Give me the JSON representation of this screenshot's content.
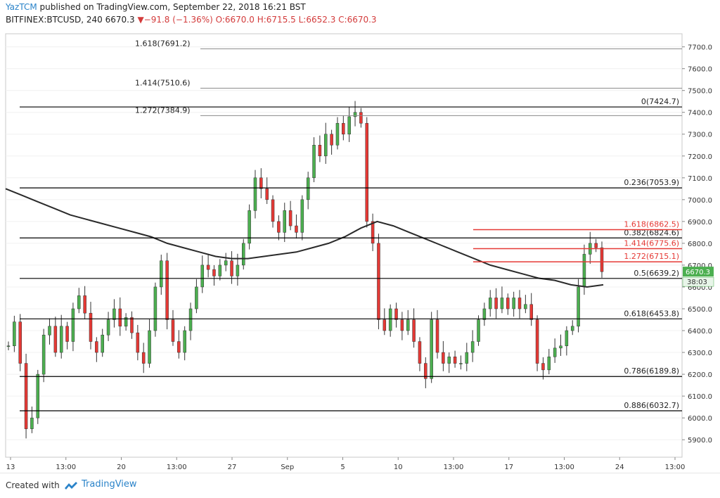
{
  "header": {
    "author": "YazTCM",
    "published": "published on TradingView.com, September 22, 2018 16:21 BST",
    "symbol_line_prefix": "BITFINEX:BTCUSD, 240",
    "last": "6670.3",
    "change": "▼−91.8 (−1.36%)",
    "open": "O:6670.0",
    "high": "H:6715.5",
    "low": "L:6652.3",
    "close": "C:6670.3"
  },
  "footer": {
    "created_label": "Created with",
    "brand_label": "TradingView"
  },
  "colors": {
    "bull": "#4caf50",
    "bear": "#e53935",
    "ma": "#2a2a2a",
    "fib_black": "#000000",
    "fib_red": "#e53935",
    "grid": "#f0f0f0",
    "price_tag": "#4caf50"
  },
  "chart_data": {
    "type": "candlestick",
    "ylim": [
      5820,
      7760
    ],
    "y_ticks": [
      "5900.0",
      "6000.0",
      "6100.0",
      "6200.0",
      "6300.0",
      "6400.0",
      "6500.0",
      "6600.0",
      "6700.0",
      "6800.0",
      "6900.0",
      "7000.0",
      "7100.0",
      "7200.0",
      "7300.0",
      "7400.0",
      "7500.0",
      "7600.0",
      "7700.0"
    ],
    "x_ticks": [
      "13",
      "13:00",
      "20",
      "13:00",
      "27",
      "Sep",
      "5",
      "10",
      "13:00",
      "17",
      "13:00",
      "24",
      "13:00"
    ],
    "last_price_label": "6670.3",
    "countdown_label": "38:03",
    "fib_levels": [
      {
        "label": "1.618(7691.2)",
        "value": 7691.2,
        "color": "gray",
        "side": "left"
      },
      {
        "label": "1.414(7510.6)",
        "value": 7510.6,
        "color": "gray",
        "side": "left"
      },
      {
        "label": "1.272(7384.9)",
        "value": 7384.9,
        "color": "gray",
        "side": "left"
      },
      {
        "label": "0(7424.7)",
        "value": 7424.7,
        "color": "black",
        "side": "right"
      },
      {
        "label": "0.236(7053.9)",
        "value": 7053.9,
        "color": "black",
        "side": "right"
      },
      {
        "label": "0.382(6824.6)",
        "value": 6824.6,
        "color": "black",
        "side": "right"
      },
      {
        "label": "0.5(6639.2)",
        "value": 6639.2,
        "color": "black",
        "side": "right"
      },
      {
        "label": "0.618(6453.8)",
        "value": 6453.8,
        "color": "black",
        "side": "right"
      },
      {
        "label": "0.786(6189.8)",
        "value": 6189.8,
        "color": "black",
        "side": "right"
      },
      {
        "label": "0.886(6032.7)",
        "value": 6032.7,
        "color": "black",
        "side": "right"
      },
      {
        "label": "1.618(6862.5)",
        "value": 6862.5,
        "color": "red",
        "side": "right"
      },
      {
        "label": "1.414(6775.6)",
        "value": 6775.6,
        "color": "red",
        "side": "right"
      },
      {
        "label": "1.272(6715.1)",
        "value": 6715.1,
        "color": "red",
        "side": "right"
      }
    ],
    "price_path": [
      6330,
      6440,
      6250,
      5950,
      6000,
      6200,
      6380,
      6420,
      6300,
      6420,
      6350,
      6500,
      6560,
      6480,
      6350,
      6300,
      6380,
      6450,
      6500,
      6420,
      6460,
      6390,
      6300,
      6250,
      6400,
      6600,
      6720,
      6450,
      6350,
      6300,
      6400,
      6500,
      6600,
      6700,
      6680,
      6650,
      6700,
      6720,
      6650,
      6700,
      6800,
      6950,
      7100,
      7050,
      7000,
      6900,
      6850,
      6950,
      6880,
      6850,
      7000,
      7100,
      7250,
      7200,
      7300,
      7250,
      7350,
      7300,
      7380,
      7400,
      7350,
      6900,
      6800,
      6450,
      6400,
      6500,
      6450,
      6400,
      6450,
      6350,
      6250,
      6180,
      6450,
      6300,
      6250,
      6280,
      6250,
      6250,
      6300,
      6350,
      6450,
      6500,
      6550,
      6500,
      6550,
      6500,
      6550,
      6500,
      6520,
      6450,
      6250,
      6220,
      6280,
      6320,
      6330,
      6400,
      6420,
      6600,
      6750,
      6800,
      6780,
      6670
    ],
    "ma_path": [
      7050,
      7020,
      6990,
      6960,
      6930,
      6910,
      6890,
      6870,
      6850,
      6830,
      6800,
      6780,
      6760,
      6740,
      6730,
      6730,
      6740,
      6750,
      6760,
      6780,
      6800,
      6830,
      6870,
      6900,
      6880,
      6850,
      6820,
      6790,
      6760,
      6730,
      6700,
      6680,
      6660,
      6640,
      6630,
      6610,
      6600,
      6610
    ]
  }
}
